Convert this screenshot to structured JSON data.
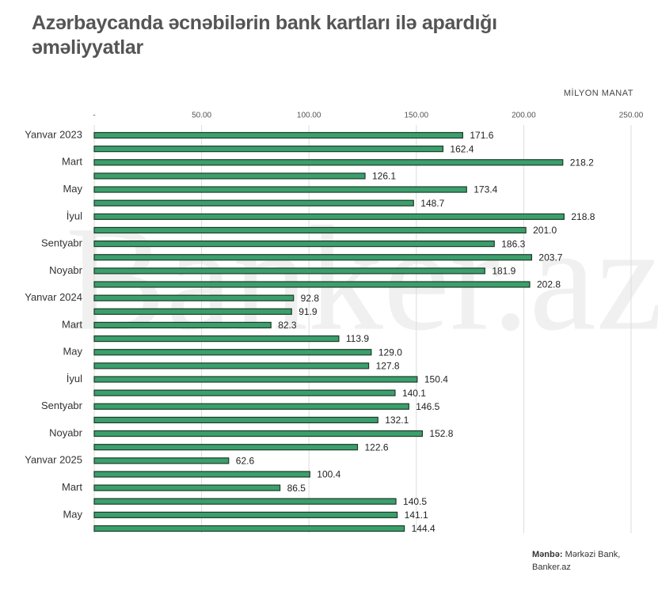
{
  "chart_data": {
    "type": "hbar",
    "title": "Azərbaycanda əcnəbilərin bank kartları ilə apardığı əməliyyatlar",
    "x_axis_label": "MİLYON MANAT",
    "watermark": "Banker.az",
    "source_label": "Mənbə:",
    "source": "Mərkəzi Bank, Banker.az",
    "categories": [
      "Yanvar 2023",
      null,
      "Mart",
      null,
      "May",
      null,
      "İyul",
      null,
      "Sentyabr",
      null,
      "Noyabr",
      null,
      "Yanvar 2024",
      null,
      "Mart",
      null,
      "May",
      null,
      "İyul",
      null,
      "Sentyabr",
      null,
      "Noyabr",
      null,
      "Yanvar 2025",
      null,
      "Mart",
      null,
      "May",
      null
    ],
    "values": [
      171.6,
      162.4,
      218.2,
      126.1,
      173.4,
      148.7,
      218.8,
      201.0,
      186.3,
      203.7,
      181.9,
      202.8,
      92.8,
      91.9,
      82.3,
      113.9,
      129.0,
      127.8,
      150.4,
      140.1,
      146.5,
      132.1,
      152.8,
      122.6,
      62.6,
      100.4,
      86.5,
      140.5,
      141.1,
      144.4
    ],
    "value_labels": [
      "171.6",
      "162.4",
      "218.2",
      "126.1",
      "173.4",
      "148.7",
      "218.8",
      "201.0",
      "186.3",
      "203.7",
      "181.9",
      "202.8",
      "92.8",
      "91.9",
      "82.3",
      "113.9",
      "129.0",
      "127.8",
      "150.4",
      "140.1",
      "146.5",
      "132.1",
      "152.8",
      "122.6",
      "62.6",
      "100.4",
      "86.5",
      "140.5",
      "141.1",
      "144.4"
    ],
    "color": "#3b9f6c",
    "edge_color": "#1e3b2a",
    "xlim": [
      0,
      250
    ],
    "xticks": [
      {
        "value": 0,
        "label": "-"
      },
      {
        "value": 50,
        "label": "50.00"
      },
      {
        "value": 100,
        "label": "100.00"
      },
      {
        "value": 150,
        "label": "150.00"
      },
      {
        "value": 200,
        "label": "200.00"
      },
      {
        "value": 250,
        "label": "250.00"
      }
    ],
    "grid": true
  }
}
